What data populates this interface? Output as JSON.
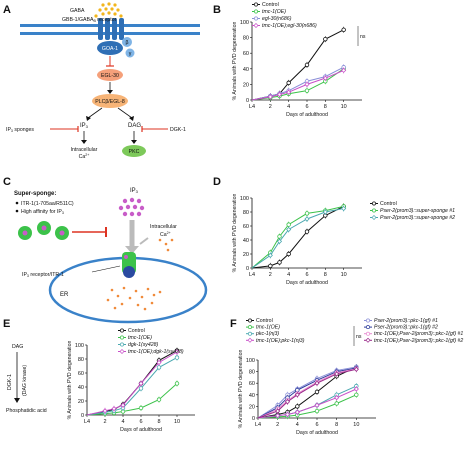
{
  "figure": {
    "panel_labels": [
      "A",
      "B",
      "C",
      "D",
      "E",
      "F"
    ],
    "panel_a": {
      "gaba": "GABA",
      "receptor": "GBB-1/GABA",
      "receptor_sub": "B",
      "receptor_suffix": " receptor",
      "goa": "GOA-1",
      "beta": "β",
      "gamma": "γ",
      "egl30": "EGL-30",
      "plc": "PLCβ/EGL-8",
      "ip3": "IP",
      "ip3_sub": "3",
      "dag": "DAG",
      "dgk": "DGK-1",
      "ip3_sponges": "IP",
      "ip3_sponges_sub": "3",
      "ip3_sponges_suffix": " sponges",
      "intracellular": "Intracellular",
      "ca": "Ca",
      "ca_sup": "2+",
      "pkc": "PKC"
    },
    "panel_c": {
      "title": "Super-sponge:",
      "bullet1": "ITR-1(1-705aa/R511C)",
      "bullet2": "High affinity for IP",
      "bullet2_sub": "3",
      "ip3": "IP",
      "ip3_sub": "3",
      "intracellular": "Intracellular",
      "ca": "Ca",
      "ca_sup": "2+",
      "receptor": "IP",
      "receptor_sub": "3",
      "receptor_suffix": " receptor/ITR-1",
      "er": "ER"
    },
    "panel_e_side": {
      "dag": "DAG",
      "dgk": "DGK-1",
      "dgk2": "(DAG kinase)",
      "pa": "Phosphatidic acid"
    }
  },
  "chart_data": [
    {
      "panel": "B",
      "type": "line",
      "xlabel": "Days of adulthood",
      "ylabel": "% Animals with PVD degeneration",
      "x_ticklabels": [
        "L4",
        "2",
        "4",
        "6",
        "8",
        "10"
      ],
      "y_ticklabels": [
        "0",
        "20",
        "40",
        "60",
        "80",
        "100"
      ],
      "xlim": [
        0,
        12
      ],
      "ylim": [
        0,
        100
      ],
      "legend": [
        "Control",
        "tmc-1(OE)",
        "egl-30(n686)",
        "tmc-1(OE);egl-30(n686)"
      ],
      "annotation": "ns",
      "series": [
        {
          "name": "Control",
          "color": "#111111",
          "marker": "open-circle",
          "x": [
            0,
            2,
            3,
            4,
            6,
            8,
            10
          ],
          "y": [
            0,
            5,
            8,
            22,
            45,
            78,
            90
          ]
        },
        {
          "name": "tmc-1(OE)",
          "color": "#3cc24a",
          "marker": "open-circle",
          "x": [
            0,
            2,
            3,
            4,
            6,
            8,
            10
          ],
          "y": [
            0,
            3,
            5,
            8,
            12,
            24,
            40
          ]
        },
        {
          "name": "egl-30(n686)",
          "color": "#8a8fd8",
          "marker": "open-circle",
          "x": [
            0,
            2,
            3,
            4,
            6,
            8,
            10
          ],
          "y": [
            0,
            5,
            8,
            12,
            24,
            30,
            42
          ]
        },
        {
          "name": "tmc-1(OE);egl-30(n686)",
          "color": "#c84fc8",
          "marker": "open-diamond",
          "x": [
            0,
            2,
            3,
            4,
            6,
            8,
            10
          ],
          "y": [
            0,
            4,
            7,
            10,
            20,
            28,
            38
          ]
        }
      ]
    },
    {
      "panel": "D",
      "type": "line",
      "xlabel": "Days of adulthood",
      "ylabel": "% Animals with PVD degeneration",
      "x_ticklabels": [
        "L4",
        "2",
        "4",
        "6",
        "8",
        "10"
      ],
      "y_ticklabels": [
        "0",
        "20",
        "40",
        "60",
        "80",
        "100"
      ],
      "xlim": [
        0,
        12
      ],
      "ylim": [
        0,
        100
      ],
      "legend": [
        "Control",
        "Pser-2(prom3)::super-sponge #1",
        "Pser-2(prom3)::super-sponge #2"
      ],
      "series": [
        {
          "name": "Control",
          "color": "#111111",
          "marker": "open-circle",
          "x": [
            0,
            2,
            3,
            4,
            6,
            8,
            10
          ],
          "y": [
            0,
            3,
            8,
            20,
            52,
            75,
            88
          ]
        },
        {
          "name": "Pser-2(prom3)::super-sponge #1",
          "color": "#3cc24a",
          "marker": "open-circle",
          "x": [
            0,
            2,
            3,
            4,
            6,
            8,
            10
          ],
          "y": [
            0,
            22,
            45,
            62,
            78,
            82,
            88
          ]
        },
        {
          "name": "Pser-2(prom3)::super-sponge #2",
          "color": "#4aa8b0",
          "marker": "open-diamond",
          "x": [
            0,
            2,
            3,
            4,
            6,
            8,
            10
          ],
          "y": [
            0,
            18,
            38,
            55,
            70,
            80,
            85
          ]
        }
      ]
    },
    {
      "panel": "E",
      "type": "line",
      "xlabel": "Days of adulthood",
      "ylabel": "% Animals with PVD degeneration",
      "x_ticklabels": [
        "L4",
        "2",
        "4",
        "6",
        "8",
        "10"
      ],
      "y_ticklabels": [
        "0",
        "20",
        "40",
        "60",
        "80",
        "100"
      ],
      "xlim": [
        0,
        12
      ],
      "ylim": [
        0,
        100
      ],
      "legend": [
        "Control",
        "tmc-1(OE)",
        "dgk-1(sy428)",
        "tmc-1(OE);dgk-1(sy428)"
      ],
      "series": [
        {
          "name": "Control",
          "color": "#111111",
          "marker": "open-circle",
          "x": [
            0,
            2,
            3,
            4,
            6,
            8,
            10
          ],
          "y": [
            0,
            5,
            8,
            15,
            45,
            78,
            92
          ]
        },
        {
          "name": "tmc-1(OE)",
          "color": "#3cc24a",
          "marker": "open-circle",
          "x": [
            0,
            2,
            3,
            4,
            6,
            8,
            10
          ],
          "y": [
            0,
            2,
            3,
            5,
            10,
            22,
            45
          ]
        },
        {
          "name": "dgk-1(sy428)",
          "color": "#4aa8b0",
          "marker": "open-circle",
          "x": [
            0,
            2,
            3,
            4,
            6,
            8,
            10
          ],
          "y": [
            0,
            4,
            6,
            10,
            38,
            68,
            82
          ]
        },
        {
          "name": "tmc-1(OE);dgk-1(sy428)",
          "color": "#c84fc8",
          "marker": "open-diamond",
          "x": [
            0,
            2,
            3,
            4,
            6,
            8,
            10
          ],
          "y": [
            0,
            6,
            9,
            14,
            45,
            75,
            90
          ]
        }
      ]
    },
    {
      "panel": "F",
      "type": "line",
      "xlabel": "Days of adulthood",
      "ylabel": "% Animals with PVD degeneration",
      "x_ticklabels": [
        "L4",
        "2",
        "4",
        "6",
        "8",
        "10"
      ],
      "y_ticklabels": [
        "0",
        "20",
        "40",
        "60",
        "80",
        "100"
      ],
      "xlim": [
        0,
        12
      ],
      "ylim": [
        0,
        100
      ],
      "legend": [
        "Control",
        "tmc-1(OE)",
        "pkc-1(nj3)",
        "tmc-1(OE);pkc-1(nj3)",
        "Pser-2(prom3)::pkc-1(gf) #1",
        "Pser-2(prom3)::pkc-1(gf) #2",
        "tmc-1(OE);Pser-2(prom3)::pkc-1(gf) #1",
        "tmc-1(OE);Pser-2(prom3)::pkc-1(gf) #2"
      ],
      "annotation": "ns",
      "series": [
        {
          "name": "Control",
          "color": "#111111",
          "marker": "open-circle",
          "x": [
            0,
            2,
            3,
            4,
            6,
            8,
            10
          ],
          "y": [
            0,
            6,
            10,
            20,
            45,
            72,
            88
          ]
        },
        {
          "name": "tmc-1(OE)",
          "color": "#3cc24a",
          "marker": "open-circle",
          "x": [
            0,
            2,
            3,
            4,
            6,
            8,
            10
          ],
          "y": [
            0,
            2,
            3,
            5,
            12,
            25,
            40
          ]
        },
        {
          "name": "pkc-1(nj3)",
          "color": "#4aa8b0",
          "marker": "open-circle",
          "x": [
            0,
            2,
            3,
            4,
            6,
            8,
            10
          ],
          "y": [
            0,
            4,
            6,
            10,
            22,
            40,
            55
          ]
        },
        {
          "name": "tmc-1(OE);pkc-1(nj3)",
          "color": "#c84fc8",
          "marker": "open-diamond",
          "x": [
            0,
            2,
            3,
            4,
            6,
            8,
            10
          ],
          "y": [
            0,
            4,
            6,
            10,
            22,
            35,
            50
          ]
        },
        {
          "name": "Pser-2(prom3)::pkc-1(gf) #1",
          "color": "#8a8fd8",
          "marker": "open-circle",
          "x": [
            0,
            2,
            3,
            4,
            6,
            8,
            10
          ],
          "y": [
            0,
            22,
            40,
            50,
            68,
            82,
            88
          ]
        },
        {
          "name": "Pser-2(prom3)::pkc-1(gf) #2",
          "color": "#2a3a9a",
          "marker": "open-circle",
          "x": [
            0,
            2,
            3,
            4,
            6,
            8,
            10
          ],
          "y": [
            0,
            18,
            35,
            48,
            65,
            80,
            86
          ]
        },
        {
          "name": "tmc-1(OE);Pser-2(prom3)::pkc-1(gf) #1",
          "color": "#e88ad0",
          "marker": "open-circle",
          "x": [
            0,
            2,
            3,
            4,
            6,
            8,
            10
          ],
          "y": [
            0,
            15,
            30,
            42,
            62,
            78,
            85
          ]
        },
        {
          "name": "tmc-1(OE);Pser-2(prom3)::pkc-1(gf) #2",
          "color": "#9a2a8a",
          "marker": "open-diamond",
          "x": [
            0,
            2,
            3,
            4,
            6,
            8,
            10
          ],
          "y": [
            0,
            12,
            28,
            40,
            60,
            76,
            84
          ]
        }
      ]
    }
  ]
}
